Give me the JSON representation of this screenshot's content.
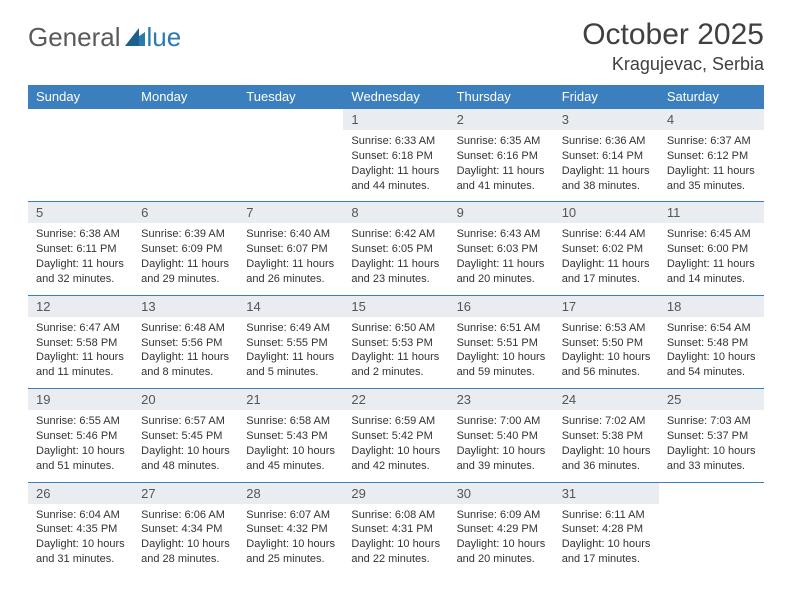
{
  "logo": {
    "part1": "General",
    "part2": "lue"
  },
  "title": "October 2025",
  "location": "Kragujevac, Serbia",
  "colors": {
    "header_bg": "#3b7fbf",
    "header_text": "#ffffff",
    "daynum_bg": "#e9edf1",
    "border": "#3b7fbf",
    "logo_gray": "#5a5a5a",
    "logo_blue": "#2a7ab0"
  },
  "weekdays": [
    "Sunday",
    "Monday",
    "Tuesday",
    "Wednesday",
    "Thursday",
    "Friday",
    "Saturday"
  ],
  "weeks": [
    [
      null,
      null,
      null,
      {
        "n": "1",
        "sr": "6:33 AM",
        "ss": "6:18 PM",
        "d": "11 hours and 44 minutes."
      },
      {
        "n": "2",
        "sr": "6:35 AM",
        "ss": "6:16 PM",
        "d": "11 hours and 41 minutes."
      },
      {
        "n": "3",
        "sr": "6:36 AM",
        "ss": "6:14 PM",
        "d": "11 hours and 38 minutes."
      },
      {
        "n": "4",
        "sr": "6:37 AM",
        "ss": "6:12 PM",
        "d": "11 hours and 35 minutes."
      }
    ],
    [
      {
        "n": "5",
        "sr": "6:38 AM",
        "ss": "6:11 PM",
        "d": "11 hours and 32 minutes."
      },
      {
        "n": "6",
        "sr": "6:39 AM",
        "ss": "6:09 PM",
        "d": "11 hours and 29 minutes."
      },
      {
        "n": "7",
        "sr": "6:40 AM",
        "ss": "6:07 PM",
        "d": "11 hours and 26 minutes."
      },
      {
        "n": "8",
        "sr": "6:42 AM",
        "ss": "6:05 PM",
        "d": "11 hours and 23 minutes."
      },
      {
        "n": "9",
        "sr": "6:43 AM",
        "ss": "6:03 PM",
        "d": "11 hours and 20 minutes."
      },
      {
        "n": "10",
        "sr": "6:44 AM",
        "ss": "6:02 PM",
        "d": "11 hours and 17 minutes."
      },
      {
        "n": "11",
        "sr": "6:45 AM",
        "ss": "6:00 PM",
        "d": "11 hours and 14 minutes."
      }
    ],
    [
      {
        "n": "12",
        "sr": "6:47 AM",
        "ss": "5:58 PM",
        "d": "11 hours and 11 minutes."
      },
      {
        "n": "13",
        "sr": "6:48 AM",
        "ss": "5:56 PM",
        "d": "11 hours and 8 minutes."
      },
      {
        "n": "14",
        "sr": "6:49 AM",
        "ss": "5:55 PM",
        "d": "11 hours and 5 minutes."
      },
      {
        "n": "15",
        "sr": "6:50 AM",
        "ss": "5:53 PM",
        "d": "11 hours and 2 minutes."
      },
      {
        "n": "16",
        "sr": "6:51 AM",
        "ss": "5:51 PM",
        "d": "10 hours and 59 minutes."
      },
      {
        "n": "17",
        "sr": "6:53 AM",
        "ss": "5:50 PM",
        "d": "10 hours and 56 minutes."
      },
      {
        "n": "18",
        "sr": "6:54 AM",
        "ss": "5:48 PM",
        "d": "10 hours and 54 minutes."
      }
    ],
    [
      {
        "n": "19",
        "sr": "6:55 AM",
        "ss": "5:46 PM",
        "d": "10 hours and 51 minutes."
      },
      {
        "n": "20",
        "sr": "6:57 AM",
        "ss": "5:45 PM",
        "d": "10 hours and 48 minutes."
      },
      {
        "n": "21",
        "sr": "6:58 AM",
        "ss": "5:43 PM",
        "d": "10 hours and 45 minutes."
      },
      {
        "n": "22",
        "sr": "6:59 AM",
        "ss": "5:42 PM",
        "d": "10 hours and 42 minutes."
      },
      {
        "n": "23",
        "sr": "7:00 AM",
        "ss": "5:40 PM",
        "d": "10 hours and 39 minutes."
      },
      {
        "n": "24",
        "sr": "7:02 AM",
        "ss": "5:38 PM",
        "d": "10 hours and 36 minutes."
      },
      {
        "n": "25",
        "sr": "7:03 AM",
        "ss": "5:37 PM",
        "d": "10 hours and 33 minutes."
      }
    ],
    [
      {
        "n": "26",
        "sr": "6:04 AM",
        "ss": "4:35 PM",
        "d": "10 hours and 31 minutes."
      },
      {
        "n": "27",
        "sr": "6:06 AM",
        "ss": "4:34 PM",
        "d": "10 hours and 28 minutes."
      },
      {
        "n": "28",
        "sr": "6:07 AM",
        "ss": "4:32 PM",
        "d": "10 hours and 25 minutes."
      },
      {
        "n": "29",
        "sr": "6:08 AM",
        "ss": "4:31 PM",
        "d": "10 hours and 22 minutes."
      },
      {
        "n": "30",
        "sr": "6:09 AM",
        "ss": "4:29 PM",
        "d": "10 hours and 20 minutes."
      },
      {
        "n": "31",
        "sr": "6:11 AM",
        "ss": "4:28 PM",
        "d": "10 hours and 17 minutes."
      },
      null
    ]
  ],
  "labels": {
    "sunrise": "Sunrise:",
    "sunset": "Sunset:",
    "daylight": "Daylight:"
  }
}
